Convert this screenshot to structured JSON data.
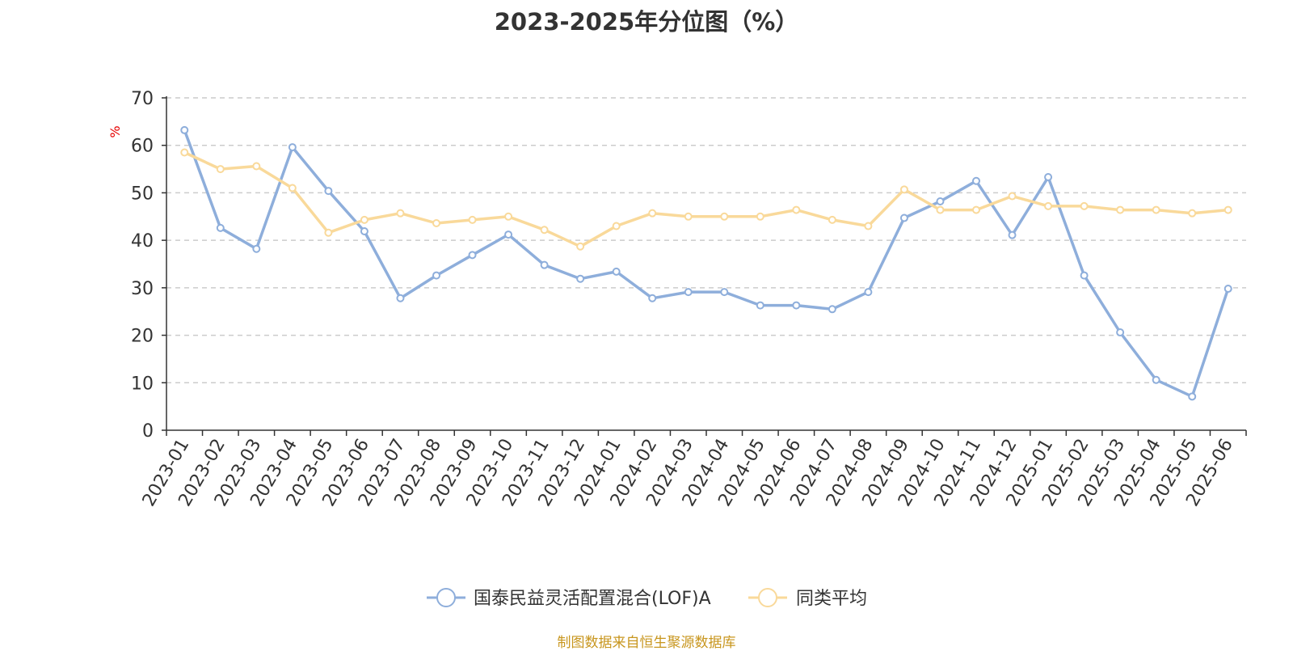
{
  "chart_data": {
    "type": "line",
    "title": "2023-2025年分位图（%）",
    "ylabel": "%",
    "ylim": [
      0,
      70
    ],
    "yticks": [
      0,
      10,
      20,
      30,
      40,
      50,
      60,
      70
    ],
    "grid": true,
    "legend": "bottom-center",
    "categories": [
      "2023-01",
      "2023-02",
      "2023-03",
      "2023-04",
      "2023-05",
      "2023-06",
      "2023-07",
      "2023-08",
      "2023-09",
      "2023-10",
      "2023-11",
      "2023-12",
      "2024-01",
      "2024-02",
      "2024-03",
      "2024-04",
      "2024-05",
      "2024-06",
      "2024-07",
      "2024-08",
      "2024-09",
      "2024-10",
      "2024-11",
      "2024-12",
      "2025-01",
      "2025-02",
      "2025-03",
      "2025-04",
      "2025-05",
      "2025-06"
    ],
    "series": [
      {
        "name": "国泰民益灵活配置混合(LOF)A",
        "color": "#8eaedb",
        "values": [
          63.2,
          42.6,
          38.2,
          59.6,
          50.4,
          41.9,
          27.8,
          32.6,
          36.9,
          41.2,
          34.8,
          31.9,
          33.4,
          27.8,
          29.1,
          29.1,
          26.3,
          26.3,
          25.5,
          29.1,
          44.7,
          48.2,
          52.5,
          41.1,
          53.3,
          32.6,
          20.6,
          10.6,
          7.1,
          29.8
        ]
      },
      {
        "name": "同类平均",
        "color": "#f9d99a",
        "values": [
          58.5,
          55.0,
          55.6,
          51.0,
          41.6,
          44.3,
          45.7,
          43.6,
          44.3,
          45.0,
          42.2,
          38.7,
          43.0,
          45.7,
          45.0,
          45.0,
          45.0,
          46.4,
          44.3,
          43.0,
          50.7,
          46.4,
          46.4,
          49.3,
          47.2,
          47.2,
          46.4,
          46.4,
          45.7,
          46.4
        ]
      }
    ]
  },
  "source_note": "制图数据来自恒生聚源数据库",
  "colors": {
    "axis": "#333333",
    "grid": "#cccccc",
    "ylabel": "#e60000",
    "source": "#c8961e"
  }
}
